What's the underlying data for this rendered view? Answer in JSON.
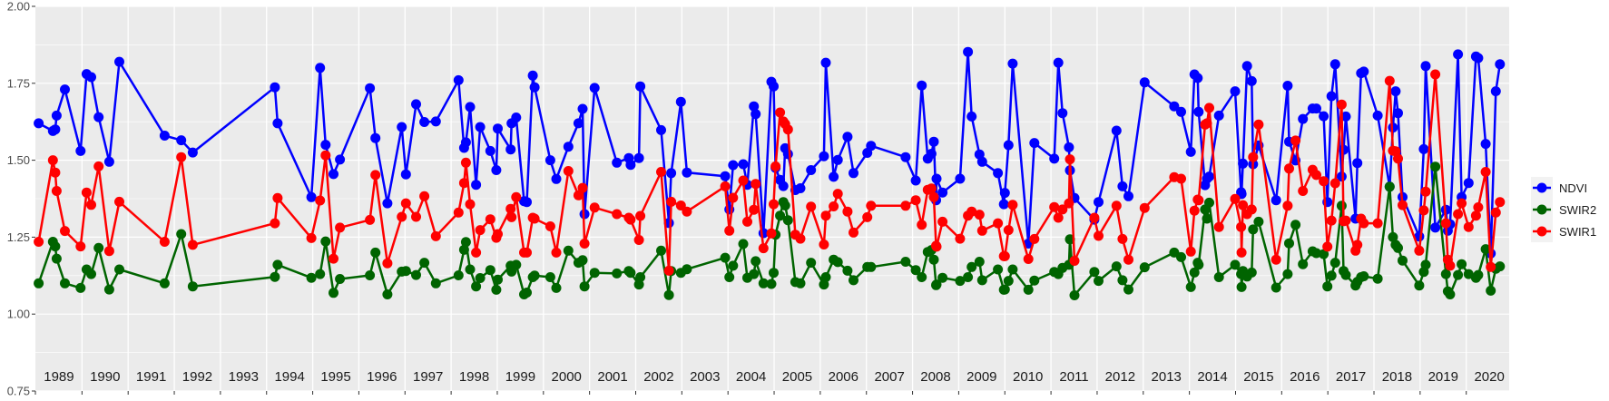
{
  "chart_data": {
    "type": "line",
    "title": "",
    "xlabel": "",
    "ylabel": "",
    "xlim": [
      1988.99,
      2020.93
    ],
    "ylim": [
      0.75,
      2.0
    ],
    "grid": true,
    "legend_position": "right",
    "y_ticks": [
      0.75,
      1.0,
      1.25,
      1.5,
      1.75,
      2.0
    ],
    "y_tick_labels": [
      "0.75",
      "1.00",
      "1.25",
      "1.50",
      "1.75",
      "2.00"
    ],
    "year_labels": [
      "1989",
      "1990",
      "1991",
      "1992",
      "1993",
      "1994",
      "1995",
      "1996",
      "1997",
      "1998",
      "1999",
      "2000",
      "2001",
      "2002",
      "2003",
      "2004",
      "2005",
      "2006",
      "2007",
      "2008",
      "2009",
      "2010",
      "2011",
      "2012",
      "2013",
      "2014",
      "2015",
      "2016",
      "2017",
      "2018",
      "2019",
      "2020"
    ],
    "series": [
      {
        "name": "NDVI",
        "color": "#0000ff",
        "column": 1
      },
      {
        "name": "SWIR2",
        "color": "#006400",
        "column": 2
      },
      {
        "name": "SWIR1",
        "color": "#ff0000",
        "column": 3
      }
    ],
    "columns": [
      "date",
      "NDVI",
      "SWIR2",
      "SWIR1"
    ],
    "rows": [
      [
        1989.06,
        1.62,
        1.1,
        1.235
      ],
      [
        1989.37,
        1.595,
        1.235,
        1.5
      ],
      [
        1989.42,
        1.6,
        1.22,
        1.46
      ],
      [
        1989.45,
        1.645,
        1.18,
        1.4
      ],
      [
        1989.63,
        1.73,
        1.1,
        1.27
      ],
      [
        1989.97,
        1.53,
        1.085,
        1.22
      ],
      [
        1990.1,
        1.78,
        1.145,
        1.395
      ],
      [
        1990.2,
        1.77,
        1.13,
        1.355
      ],
      [
        1990.36,
        1.64,
        1.215,
        1.48
      ],
      [
        1990.59,
        1.495,
        1.08,
        1.205
      ],
      [
        1990.81,
        1.82,
        1.145,
        1.365
      ],
      [
        1991.79,
        1.58,
        1.1,
        1.235
      ],
      [
        1992.15,
        1.565,
        1.26,
        1.51
      ],
      [
        1992.4,
        1.525,
        1.09,
        1.225
      ],
      [
        1994.18,
        1.737,
        1.121,
        1.295
      ],
      [
        1994.24,
        1.62,
        1.16,
        1.377
      ],
      [
        1994.97,
        1.38,
        1.118,
        1.247
      ],
      [
        1995.16,
        1.8,
        1.13,
        1.369
      ],
      [
        1995.28,
        1.55,
        1.236,
        1.516
      ],
      [
        1995.45,
        1.455,
        1.069,
        1.18
      ],
      [
        1995.59,
        1.502,
        1.114,
        1.281
      ],
      [
        1996.24,
        1.734,
        1.126,
        1.306
      ],
      [
        1996.36,
        1.572,
        1.2,
        1.452
      ],
      [
        1996.62,
        1.36,
        1.064,
        1.165
      ],
      [
        1996.93,
        1.608,
        1.138,
        1.316
      ],
      [
        1997.02,
        1.454,
        1.14,
        1.36
      ],
      [
        1997.24,
        1.682,
        1.127,
        1.316
      ],
      [
        1997.42,
        1.624,
        1.167,
        1.383
      ],
      [
        1997.67,
        1.626,
        1.1,
        1.253
      ],
      [
        1998.16,
        1.76,
        1.126,
        1.33
      ],
      [
        1998.28,
        1.54,
        1.209,
        1.426
      ],
      [
        1998.32,
        1.558,
        1.234,
        1.492
      ],
      [
        1998.41,
        1.673,
        1.145,
        1.357
      ],
      [
        1998.54,
        1.42,
        1.09,
        1.2
      ],
      [
        1998.63,
        1.608,
        1.117,
        1.273
      ],
      [
        1998.85,
        1.53,
        1.143,
        1.308
      ],
      [
        1998.98,
        1.468,
        1.079,
        1.248
      ],
      [
        1999.01,
        1.603,
        1.112,
        1.26
      ],
      [
        1999.29,
        1.535,
        1.157,
        1.342
      ],
      [
        1999.31,
        1.62,
        1.138,
        1.315
      ],
      [
        1999.41,
        1.639,
        1.16,
        1.38
      ],
      [
        1999.58,
        1.367,
        1.064,
        1.2
      ],
      [
        1999.64,
        1.364,
        1.07,
        1.2
      ],
      [
        1999.77,
        1.775,
        1.12,
        1.313
      ],
      [
        1999.81,
        1.737,
        1.125,
        1.31
      ],
      [
        2000.15,
        1.5,
        1.12,
        1.285
      ],
      [
        2000.28,
        1.439,
        1.085,
        1.2
      ],
      [
        2000.54,
        1.544,
        1.206,
        1.465
      ],
      [
        2000.76,
        1.62,
        1.167,
        1.386
      ],
      [
        2000.85,
        1.667,
        1.175,
        1.41
      ],
      [
        2000.89,
        1.325,
        1.09,
        1.229
      ],
      [
        2001.11,
        1.735,
        1.134,
        1.346
      ],
      [
        2001.59,
        1.492,
        1.132,
        1.325
      ],
      [
        2001.85,
        1.507,
        1.14,
        1.313
      ],
      [
        2001.89,
        1.485,
        1.134,
        1.307
      ],
      [
        2002.07,
        1.507,
        1.096,
        1.241
      ],
      [
        2002.1,
        1.74,
        1.12,
        1.319
      ],
      [
        2002.55,
        1.598,
        1.206,
        1.462
      ],
      [
        2002.72,
        1.296,
        1.062,
        1.141
      ],
      [
        2002.77,
        1.458,
        1.14,
        1.365
      ],
      [
        2002.98,
        1.69,
        1.134,
        1.353
      ],
      [
        2003.11,
        1.46,
        1.146,
        1.333
      ],
      [
        2003.94,
        1.448,
        1.183,
        1.415
      ],
      [
        2004.03,
        1.34,
        1.12,
        1.271
      ],
      [
        2004.11,
        1.484,
        1.157,
        1.378
      ],
      [
        2004.33,
        1.487,
        1.228,
        1.434
      ],
      [
        2004.42,
        1.42,
        1.118,
        1.3
      ],
      [
        2004.56,
        1.675,
        1.13,
        1.339
      ],
      [
        2004.6,
        1.65,
        1.172,
        1.423
      ],
      [
        2004.77,
        1.263,
        1.1,
        1.214
      ],
      [
        2004.94,
        1.755,
        1.098,
        1.262
      ],
      [
        2004.99,
        1.74,
        1.134,
        1.357
      ],
      [
        2005.03,
        1.475,
        1.258,
        1.48
      ],
      [
        2005.13,
        1.436,
        1.32,
        1.655
      ],
      [
        2005.2,
        1.416,
        1.364,
        1.626
      ],
      [
        2005.24,
        1.539,
        1.353,
        1.618
      ],
      [
        2005.3,
        1.52,
        1.305,
        1.6
      ],
      [
        2005.46,
        1.403,
        1.104,
        1.258
      ],
      [
        2005.57,
        1.409,
        1.1,
        1.245
      ],
      [
        2005.8,
        1.468,
        1.167,
        1.349
      ],
      [
        2006.08,
        1.513,
        1.096,
        1.226
      ],
      [
        2006.12,
        1.817,
        1.12,
        1.32
      ],
      [
        2006.29,
        1.446,
        1.177,
        1.35
      ],
      [
        2006.38,
        1.501,
        1.169,
        1.391
      ],
      [
        2006.59,
        1.576,
        1.141,
        1.333
      ],
      [
        2006.72,
        1.458,
        1.11,
        1.265
      ],
      [
        2007.02,
        1.524,
        1.153,
        1.315
      ],
      [
        2007.1,
        1.547,
        1.153,
        1.352
      ],
      [
        2007.85,
        1.51,
        1.17,
        1.352
      ],
      [
        2008.07,
        1.434,
        1.143,
        1.37
      ],
      [
        2008.2,
        1.743,
        1.12,
        1.29
      ],
      [
        2008.33,
        1.505,
        1.202,
        1.404
      ],
      [
        2008.41,
        1.521,
        1.208,
        1.408
      ],
      [
        2008.46,
        1.56,
        1.177,
        1.38
      ],
      [
        2008.51,
        1.37,
        1.094,
        1.222
      ],
      [
        2008.52,
        1.44,
        1.096,
        1.219
      ],
      [
        2008.65,
        1.395,
        1.118,
        1.3
      ],
      [
        2009.03,
        1.44,
        1.108,
        1.245
      ],
      [
        2009.2,
        1.852,
        1.12,
        1.32
      ],
      [
        2009.28,
        1.642,
        1.153,
        1.333
      ],
      [
        2009.45,
        1.519,
        1.17,
        1.323
      ],
      [
        2009.51,
        1.495,
        1.11,
        1.271
      ],
      [
        2009.85,
        1.458,
        1.145,
        1.295
      ],
      [
        2009.98,
        1.357,
        1.079,
        1.188
      ],
      [
        2010.0,
        1.394,
        1.08,
        1.188
      ],
      [
        2010.08,
        1.549,
        1.108,
        1.273
      ],
      [
        2010.17,
        1.814,
        1.145,
        1.355
      ],
      [
        2010.51,
        1.229,
        1.079,
        1.179
      ],
      [
        2010.64,
        1.556,
        1.109,
        1.244
      ],
      [
        2011.07,
        1.505,
        1.137,
        1.348
      ],
      [
        2011.16,
        1.817,
        1.13,
        1.313
      ],
      [
        2011.25,
        1.653,
        1.15,
        1.34
      ],
      [
        2011.39,
        1.542,
        1.16,
        1.36
      ],
      [
        2011.41,
        1.467,
        1.243,
        1.503
      ],
      [
        2011.51,
        1.377,
        1.061,
        1.173
      ],
      [
        2011.94,
        1.307,
        1.137,
        1.313
      ],
      [
        2012.03,
        1.364,
        1.108,
        1.254
      ],
      [
        2012.42,
        1.596,
        1.155,
        1.352
      ],
      [
        2012.55,
        1.415,
        1.11,
        1.244
      ],
      [
        2012.68,
        1.383,
        1.08,
        1.177
      ],
      [
        2013.03,
        1.753,
        1.152,
        1.345
      ],
      [
        2013.67,
        1.675,
        1.2,
        1.445
      ],
      [
        2013.82,
        1.657,
        1.185,
        1.44
      ],
      [
        2014.03,
        1.527,
        1.088,
        1.203
      ],
      [
        2014.11,
        1.779,
        1.135,
        1.336
      ],
      [
        2014.18,
        1.767,
        1.167,
        1.372
      ],
      [
        2014.2,
        1.657,
        1.16,
        1.37
      ],
      [
        2014.34,
        1.419,
        1.34,
        1.616
      ],
      [
        2014.38,
        1.44,
        1.31,
        1.62
      ],
      [
        2014.43,
        1.447,
        1.362,
        1.67
      ],
      [
        2014.64,
        1.645,
        1.12,
        1.283
      ],
      [
        2014.99,
        1.724,
        1.16,
        1.374
      ],
      [
        2015.12,
        1.396,
        1.13,
        1.283
      ],
      [
        2015.13,
        1.39,
        1.088,
        1.2
      ],
      [
        2015.16,
        1.489,
        1.14,
        1.354
      ],
      [
        2015.25,
        1.806,
        1.122,
        1.325
      ],
      [
        2015.35,
        1.757,
        1.135,
        1.34
      ],
      [
        2015.38,
        1.487,
        1.275,
        1.51
      ],
      [
        2015.5,
        1.548,
        1.3,
        1.616
      ],
      [
        2015.88,
        1.37,
        1.086,
        1.177
      ],
      [
        2016.13,
        1.742,
        1.13,
        1.352
      ],
      [
        2016.16,
        1.56,
        1.23,
        1.473
      ],
      [
        2016.3,
        1.499,
        1.29,
        1.564
      ],
      [
        2016.46,
        1.634,
        1.162,
        1.4
      ],
      [
        2016.67,
        1.668,
        1.204,
        1.469
      ],
      [
        2016.75,
        1.668,
        1.198,
        1.452
      ],
      [
        2016.91,
        1.643,
        1.195,
        1.432
      ],
      [
        2016.99,
        1.364,
        1.09,
        1.219
      ],
      [
        2017.08,
        1.708,
        1.125,
        1.304
      ],
      [
        2017.16,
        1.812,
        1.167,
        1.425
      ],
      [
        2017.3,
        1.447,
        1.352,
        1.681
      ],
      [
        2017.34,
        1.534,
        1.14,
        1.302
      ],
      [
        2017.39,
        1.642,
        1.127,
        1.304
      ],
      [
        2017.6,
        1.31,
        1.093,
        1.206
      ],
      [
        2017.64,
        1.491,
        1.105,
        1.225
      ],
      [
        2017.72,
        1.783,
        1.12,
        1.31
      ],
      [
        2017.78,
        1.788,
        1.123,
        1.295
      ],
      [
        2018.08,
        1.645,
        1.115,
        1.295
      ],
      [
        2018.34,
        1.414,
        1.414,
        1.758
      ],
      [
        2018.41,
        1.606,
        1.25,
        1.531
      ],
      [
        2018.47,
        1.724,
        1.225,
        1.529
      ],
      [
        2018.52,
        1.653,
        1.215,
        1.505
      ],
      [
        2018.62,
        1.38,
        1.174,
        1.354
      ],
      [
        2018.98,
        1.252,
        1.093,
        1.206
      ],
      [
        2019.08,
        1.536,
        1.137,
        1.337
      ],
      [
        2019.12,
        1.806,
        1.16,
        1.398
      ],
      [
        2019.33,
        1.281,
        1.479,
        1.779
      ],
      [
        2019.56,
        1.339,
        1.13,
        1.295
      ],
      [
        2019.6,
        1.271,
        1.074,
        1.177
      ],
      [
        2019.65,
        1.292,
        1.064,
        1.157
      ],
      [
        2019.82,
        1.844,
        1.127,
        1.325
      ],
      [
        2019.9,
        1.38,
        1.162,
        1.36
      ],
      [
        2020.05,
        1.426,
        1.13,
        1.283
      ],
      [
        2020.21,
        1.837,
        1.118,
        1.32
      ],
      [
        2020.26,
        1.832,
        1.127,
        1.347
      ],
      [
        2020.42,
        1.553,
        1.211,
        1.462
      ],
      [
        2020.53,
        1.197,
        1.076,
        1.153
      ],
      [
        2020.64,
        1.724,
        1.147,
        1.33
      ],
      [
        2020.73,
        1.812,
        1.155,
        1.364
      ]
    ]
  },
  "legend": {
    "items": [
      {
        "label": "NDVI",
        "color": "#0000ff"
      },
      {
        "label": "SWIR2",
        "color": "#006400"
      },
      {
        "label": "SWIR1",
        "color": "#ff0000"
      }
    ]
  }
}
